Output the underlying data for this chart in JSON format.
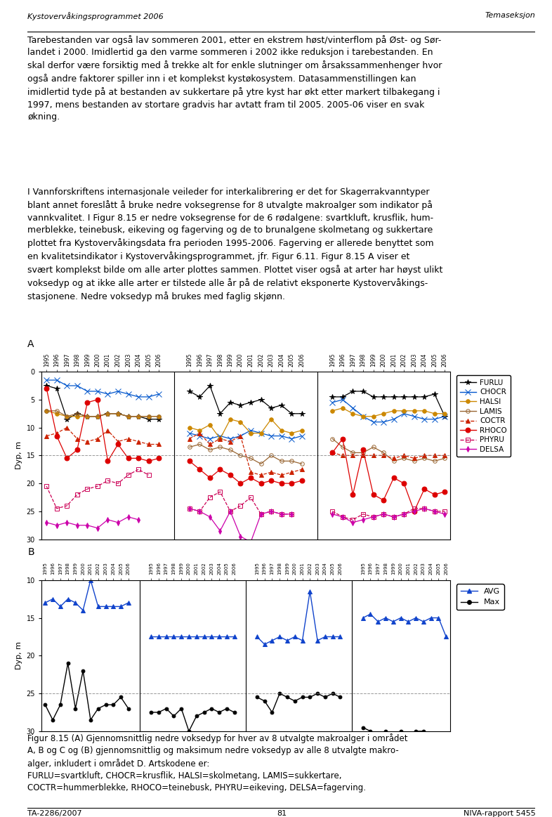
{
  "header_left": "Kystovervåkingsprogrammet 2006",
  "header_right": "Temaseksjon",
  "para1_lines": [
    "Tarebestanden var også lav sommeren 2001, etter en ekstrem høst/vinterflom på Øst- og Sør-",
    "landet i 2000. Imidlertid ga den varme sommeren i 2002 ikke reduksjon i tarebestanden. En",
    "skal derfor være forsiktig med å trekke alt for enkle slutninger om årsakssammenhenger hvor",
    "også andre faktorer spiller inn i et komplekst kystøkosystem. Datasammenstillingen kan",
    "imidlertid tyde på at bestanden av sukkertare på ytre kyst har økt etter markert tilbakegang i",
    "1997, mens bestanden av stortare gradvis har avtatt fram til 2005. 2005-06 viser en svak",
    "økning."
  ],
  "para2_lines": [
    "I Vannforskriftens internasjonale veileder for interkalibrering er det for Skagerrakvanntyper",
    "blant annet foreslått å bruke nedre voksegrense for 8 utvalgte makroalger som indikator på",
    "vannkvalitet. I Figur 8.15 er nedre voksegrense for de 6 rødalgene: svartkluft, krusflik, hum-",
    "merblekke, teinebusk, eikeving og fagerving og de to brunalgene skolmetang og sukkertare",
    "plottet fra Kystovervåkingsdata fra perioden 1995-2006. Fagerving er allerede benyttet som",
    "en kvalitetsindikator i Kystovervåkingsprogrammet, jfr. Figur 6.11. Figur 8.15 A viser et",
    "svært komplekst bilde om alle arter plottes sammen. Plottet viser også at arter har høyst ulikt",
    "voksedyp og at ikke alle arter er tilstede alle år på de relativt eksponerte Kystovervåkings-",
    "stasjonene. Nedre voksedyp må brukes med faglig skjønn."
  ],
  "caption_lines": [
    "Figur 8.15 (A) Gjennomsnittlig nedre voksedyp for hver av 8 utvalgte makroalger i området",
    "A, B og C og (B) gjennomsnittlig og maksimum nedre voksedyp av alle 8 utvalgte makro-",
    "alger, inkludert i området D. Artskodene er:",
    "FURLU=svartkluft, CHOCR=krusflik, HALSI=skolmetang, LAMIS=sukkertare,",
    "COCTR=hummerblekke, RHOCO=teinebusk, PHYRU=eikeving, DELSA=fagerving."
  ],
  "footer_left": "TA-2286/2007",
  "footer_center": "81",
  "footer_right": "NIVA-rapport 5455",
  "years": [
    1995,
    1996,
    1997,
    1998,
    1999,
    2000,
    2001,
    2002,
    2003,
    2004,
    2005,
    2006
  ],
  "chartA_areaA": {
    "FURLU": [
      2.5,
      3.0,
      8.5,
      7.5,
      8.0,
      8.0,
      7.5,
      7.5,
      8.0,
      8.0,
      8.5,
      8.5
    ],
    "CHOCR": [
      1.5,
      1.5,
      2.5,
      2.5,
      3.5,
      3.5,
      4.0,
      3.5,
      4.0,
      4.5,
      4.5,
      4.0
    ],
    "HALSI": [
      7.0,
      7.5,
      8.0,
      8.0,
      8.0,
      8.0,
      7.5,
      7.5,
      8.0,
      8.0,
      8.0,
      8.0
    ],
    "LAMIS": [
      7.0,
      7.0,
      8.0,
      7.5,
      8.0,
      8.0,
      7.5,
      7.5,
      8.0,
      8.0,
      8.0,
      8.0
    ],
    "COCTR": [
      11.5,
      11.0,
      10.0,
      12.0,
      12.5,
      12.0,
      10.5,
      12.5,
      12.0,
      12.5,
      13.0,
      13.0
    ],
    "RHOCO": [
      3.0,
      11.5,
      15.5,
      14.0,
      5.5,
      5.0,
      16.0,
      13.0,
      15.5,
      15.5,
      16.0,
      15.5
    ],
    "PHYRU": [
      20.5,
      24.5,
      24.0,
      22.0,
      21.0,
      20.5,
      19.5,
      20.0,
      18.5,
      17.5,
      18.5,
      null
    ],
    "DELSA": [
      27.0,
      27.5,
      27.0,
      27.5,
      27.5,
      28.0,
      26.5,
      27.0,
      26.0,
      26.5,
      null,
      null
    ]
  },
  "chartA_areaB": {
    "FURLU": [
      3.5,
      4.5,
      2.5,
      7.5,
      5.5,
      6.0,
      5.5,
      5.0,
      6.5,
      6.0,
      7.5,
      7.5
    ],
    "CHOCR": [
      11.0,
      11.5,
      12.0,
      11.5,
      12.0,
      11.5,
      10.5,
      11.0,
      11.5,
      11.5,
      12.0,
      11.5
    ],
    "HALSI": [
      10.0,
      10.5,
      9.5,
      12.0,
      8.5,
      9.0,
      11.0,
      11.0,
      8.5,
      10.5,
      11.0,
      10.5
    ],
    "LAMIS": [
      13.5,
      13.0,
      14.0,
      13.5,
      14.0,
      15.0,
      15.5,
      16.5,
      15.0,
      16.0,
      16.0,
      16.5
    ],
    "COCTR": [
      12.0,
      11.0,
      13.0,
      12.0,
      12.5,
      11.5,
      18.0,
      18.5,
      18.0,
      18.5,
      18.0,
      17.5
    ],
    "RHOCO": [
      16.0,
      17.5,
      19.0,
      17.5,
      18.5,
      20.0,
      19.0,
      20.0,
      19.5,
      20.0,
      20.0,
      19.5
    ],
    "PHYRU": [
      24.5,
      25.0,
      22.5,
      21.5,
      25.0,
      24.0,
      22.5,
      25.5,
      25.0,
      25.5,
      25.5,
      null
    ],
    "DELSA": [
      24.5,
      25.0,
      26.0,
      28.5,
      25.0,
      29.5,
      30.5,
      25.5,
      25.0,
      25.5,
      25.5,
      null
    ]
  },
  "chartA_areaC": {
    "FURLU": [
      4.5,
      4.5,
      3.5,
      3.5,
      4.5,
      4.5,
      4.5,
      4.5,
      4.5,
      4.5,
      4.0,
      8.0
    ],
    "CHOCR": [
      5.5,
      5.0,
      6.5,
      8.0,
      9.0,
      9.0,
      8.5,
      7.5,
      8.0,
      8.5,
      8.5,
      8.0
    ],
    "HALSI": [
      7.0,
      6.5,
      7.5,
      8.0,
      8.0,
      7.5,
      7.0,
      7.0,
      7.0,
      7.0,
      7.5,
      7.5
    ],
    "LAMIS": [
      12.0,
      13.5,
      14.5,
      14.5,
      13.5,
      14.5,
      16.0,
      15.5,
      16.0,
      15.5,
      16.0,
      15.5
    ],
    "COCTR": [
      14.5,
      15.0,
      15.0,
      15.0,
      15.0,
      15.0,
      15.5,
      15.0,
      15.5,
      15.0,
      15.0,
      15.0
    ],
    "RHOCO": [
      14.5,
      12.0,
      22.0,
      14.0,
      22.0,
      23.0,
      19.0,
      20.0,
      25.0,
      21.0,
      22.0,
      21.5
    ],
    "PHYRU": [
      25.0,
      26.0,
      26.5,
      25.5,
      26.0,
      25.5,
      26.0,
      25.5,
      24.5,
      24.5,
      25.0,
      25.0
    ],
    "DELSA": [
      25.5,
      26.0,
      27.0,
      26.5,
      26.0,
      25.5,
      26.0,
      25.5,
      25.0,
      24.5,
      25.0,
      25.5
    ]
  },
  "chartB_areaA_avg": [
    13.0,
    12.5,
    13.5,
    12.5,
    13.0,
    14.0,
    10.0,
    13.5,
    13.5,
    13.5,
    13.5,
    13.0
  ],
  "chartB_areaA_max": [
    26.5,
    28.5,
    26.5,
    21.0,
    27.0,
    22.0,
    28.5,
    27.0,
    26.5,
    26.5,
    25.5,
    27.0
  ],
  "chartB_areaB_avg": [
    17.5,
    17.5,
    17.5,
    17.5,
    17.5,
    17.5,
    17.5,
    17.5,
    17.5,
    17.5,
    17.5,
    17.5
  ],
  "chartB_areaB_max": [
    27.5,
    27.5,
    27.0,
    28.0,
    27.0,
    30.0,
    28.0,
    27.5,
    27.0,
    27.5,
    27.0,
    27.5
  ],
  "chartB_areaC_avg": [
    17.5,
    18.5,
    18.0,
    17.5,
    18.0,
    17.5,
    18.0,
    11.5,
    18.0,
    17.5,
    17.5,
    17.5
  ],
  "chartB_areaC_max": [
    25.5,
    26.0,
    27.5,
    25.0,
    25.5,
    26.0,
    25.5,
    25.5,
    25.0,
    25.5,
    25.0,
    25.5
  ],
  "chartB_areaD_avg": [
    15.0,
    14.5,
    15.5,
    15.0,
    15.5,
    15.0,
    15.5,
    15.0,
    15.5,
    15.0,
    15.0,
    17.5
  ],
  "chartB_areaD_max": [
    29.5,
    30.0,
    30.5,
    30.0,
    30.5,
    30.0,
    30.5,
    30.0,
    30.0,
    30.5,
    30.5,
    30.5
  ],
  "species_colors": {
    "FURLU": "#000000",
    "CHOCR": "#0000cc",
    "HALSI": "#cc8800",
    "LAMIS": "#996600",
    "COCTR": "#cc2200",
    "RHOCO": "#cc0000",
    "PHYRU": "#cc0066",
    "DELSA": "#cc00cc"
  }
}
